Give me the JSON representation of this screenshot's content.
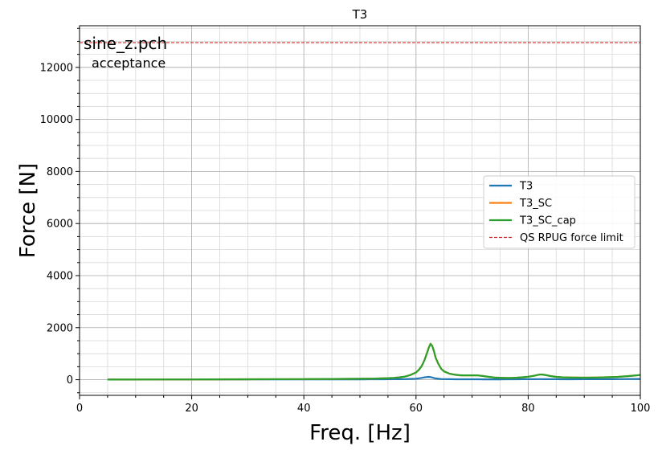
{
  "chart_data": {
    "type": "line",
    "title": "T3",
    "xlabel": "Freq. [Hz]",
    "ylabel": "Force [N]",
    "xlim": [
      0,
      100
    ],
    "ylim": [
      -600,
      13600
    ],
    "xticks": [
      0,
      20,
      40,
      60,
      80,
      100
    ],
    "yticks": [
      0,
      2000,
      4000,
      6000,
      8000,
      10000,
      12000
    ],
    "grid": "major and minor",
    "legend_position": "center-right",
    "annotations": [
      {
        "text": "sine_z.pch",
        "style": "main"
      },
      {
        "text": "acceptance",
        "style": "sub"
      }
    ],
    "x": [
      5,
      10,
      20,
      30,
      40,
      45,
      50,
      52,
      54,
      56,
      57,
      58,
      59,
      60,
      60.5,
      61,
      61.5,
      62,
      62.3,
      62.6,
      62.9,
      63.2,
      63.5,
      64,
      64.5,
      65,
      66,
      67,
      68,
      69,
      70,
      71,
      72,
      73,
      74,
      75,
      76,
      77,
      78,
      79,
      80,
      81,
      81.5,
      82,
      82.5,
      83,
      84,
      85,
      86,
      88,
      90,
      92,
      94,
      96,
      98,
      100
    ],
    "series": [
      {
        "name": "T3",
        "color": "#1f77b4",
        "values": [
          5,
          6,
          8,
          10,
          12,
          13,
          15,
          16,
          18,
          20,
          22,
          25,
          30,
          40,
          55,
          70,
          90,
          105,
          110,
          100,
          85,
          65,
          50,
          35,
          28,
          25,
          20,
          18,
          17,
          16,
          16,
          16,
          15,
          15,
          15,
          15,
          16,
          17,
          18,
          19,
          20,
          22,
          24,
          25,
          24,
          22,
          20,
          19,
          18,
          18,
          19,
          20,
          22,
          24,
          27,
          30
        ]
      },
      {
        "name": "T3_SC",
        "color": "#ff7f0e",
        "values": [
          5,
          8,
          12,
          17,
          25,
          30,
          37,
          42,
          50,
          70,
          90,
          120,
          180,
          280,
          380,
          520,
          750,
          1050,
          1250,
          1380,
          1300,
          1100,
          850,
          600,
          420,
          320,
          230,
          190,
          170,
          170,
          170,
          165,
          140,
          110,
          85,
          75,
          70,
          70,
          80,
          95,
          115,
          150,
          175,
          195,
          200,
          185,
          140,
          110,
          95,
          85,
          80,
          85,
          95,
          110,
          140,
          180
        ]
      },
      {
        "name": "T3_SC_cap",
        "color": "#2ca02c",
        "values": [
          5,
          8,
          12,
          17,
          25,
          30,
          37,
          42,
          50,
          70,
          90,
          120,
          180,
          280,
          380,
          520,
          750,
          1050,
          1250,
          1380,
          1300,
          1100,
          850,
          600,
          420,
          320,
          230,
          190,
          170,
          170,
          170,
          165,
          140,
          110,
          85,
          75,
          70,
          70,
          80,
          95,
          115,
          150,
          175,
          195,
          200,
          185,
          140,
          110,
          95,
          85,
          80,
          85,
          95,
          110,
          140,
          180
        ]
      }
    ],
    "reference_lines": [
      {
        "name": "QS RPUG force limit",
        "y": 12950,
        "color": "#d62728",
        "dashed": true
      }
    ]
  }
}
